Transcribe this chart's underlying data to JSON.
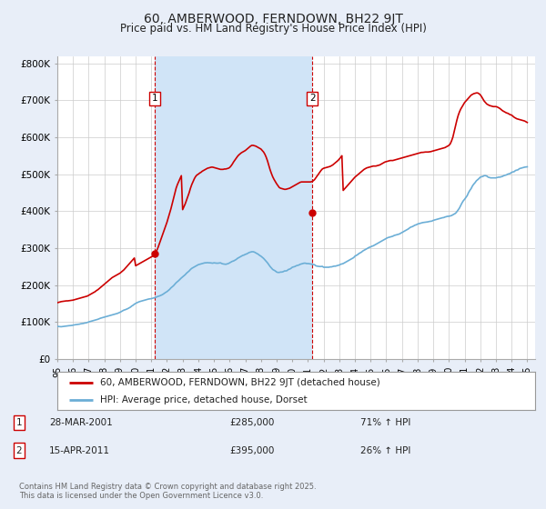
{
  "title": "60, AMBERWOOD, FERNDOWN, BH22 9JT",
  "subtitle": "Price paid vs. HM Land Registry's House Price Index (HPI)",
  "title_fontsize": 10,
  "subtitle_fontsize": 8.5,
  "ylabel_ticks": [
    "£0",
    "£100K",
    "£200K",
    "£300K",
    "£400K",
    "£500K",
    "£600K",
    "£700K",
    "£800K"
  ],
  "ytick_values": [
    0,
    100000,
    200000,
    300000,
    400000,
    500000,
    600000,
    700000,
    800000
  ],
  "ylim": [
    0,
    820000
  ],
  "xlim_start": 1995.0,
  "xlim_end": 2025.5,
  "fig_bg_color": "#e8eef8",
  "plot_bg_color": "#ffffff",
  "grid_color": "#cccccc",
  "shade_color": "#d0e4f7",
  "red_line_color": "#cc0000",
  "blue_line_color": "#6baed6",
  "vline_color": "#cc0000",
  "sale1_x": 2001.24,
  "sale1_y": 285000,
  "sale1_label": "1",
  "sale2_x": 2011.29,
  "sale2_y": 395000,
  "sale2_label": "2",
  "legend_red_label": "60, AMBERWOOD, FERNDOWN, BH22 9JT (detached house)",
  "legend_blue_label": "HPI: Average price, detached house, Dorset",
  "copyright_text": "Contains HM Land Registry data © Crown copyright and database right 2025.\nThis data is licensed under the Open Government Licence v3.0.",
  "hpi_years": [
    1995.0,
    1995.083,
    1995.167,
    1995.25,
    1995.333,
    1995.417,
    1995.5,
    1995.583,
    1995.667,
    1995.75,
    1995.833,
    1995.917,
    1996.0,
    1996.083,
    1996.167,
    1996.25,
    1996.333,
    1996.417,
    1996.5,
    1996.583,
    1996.667,
    1996.75,
    1996.833,
    1996.917,
    1997.0,
    1997.083,
    1997.167,
    1997.25,
    1997.333,
    1997.417,
    1997.5,
    1997.583,
    1997.667,
    1997.75,
    1997.833,
    1997.917,
    1998.0,
    1998.083,
    1998.167,
    1998.25,
    1998.333,
    1998.417,
    1998.5,
    1998.583,
    1998.667,
    1998.75,
    1998.833,
    1998.917,
    1999.0,
    1999.083,
    1999.167,
    1999.25,
    1999.333,
    1999.417,
    1999.5,
    1999.583,
    1999.667,
    1999.75,
    1999.833,
    1999.917,
    2000.0,
    2000.083,
    2000.167,
    2000.25,
    2000.333,
    2000.417,
    2000.5,
    2000.583,
    2000.667,
    2000.75,
    2000.833,
    2000.917,
    2001.0,
    2001.083,
    2001.167,
    2001.25,
    2001.333,
    2001.417,
    2001.5,
    2001.583,
    2001.667,
    2001.75,
    2001.833,
    2001.917,
    2002.0,
    2002.083,
    2002.167,
    2002.25,
    2002.333,
    2002.417,
    2002.5,
    2002.583,
    2002.667,
    2002.75,
    2002.833,
    2002.917,
    2003.0,
    2003.083,
    2003.167,
    2003.25,
    2003.333,
    2003.417,
    2003.5,
    2003.583,
    2003.667,
    2003.75,
    2003.833,
    2003.917,
    2004.0,
    2004.083,
    2004.167,
    2004.25,
    2004.333,
    2004.417,
    2004.5,
    2004.583,
    2004.667,
    2004.75,
    2004.833,
    2004.917,
    2005.0,
    2005.083,
    2005.167,
    2005.25,
    2005.333,
    2005.417,
    2005.5,
    2005.583,
    2005.667,
    2005.75,
    2005.833,
    2005.917,
    2006.0,
    2006.083,
    2006.167,
    2006.25,
    2006.333,
    2006.417,
    2006.5,
    2006.583,
    2006.667,
    2006.75,
    2006.833,
    2006.917,
    2007.0,
    2007.083,
    2007.167,
    2007.25,
    2007.333,
    2007.417,
    2007.5,
    2007.583,
    2007.667,
    2007.75,
    2007.833,
    2007.917,
    2008.0,
    2008.083,
    2008.167,
    2008.25,
    2008.333,
    2008.417,
    2008.5,
    2008.583,
    2008.667,
    2008.75,
    2008.833,
    2008.917,
    2009.0,
    2009.083,
    2009.167,
    2009.25,
    2009.333,
    2009.417,
    2009.5,
    2009.583,
    2009.667,
    2009.75,
    2009.833,
    2009.917,
    2010.0,
    2010.083,
    2010.167,
    2010.25,
    2010.333,
    2010.417,
    2010.5,
    2010.583,
    2010.667,
    2010.75,
    2010.833,
    2010.917,
    2011.0,
    2011.083,
    2011.167,
    2011.25,
    2011.333,
    2011.417,
    2011.5,
    2011.583,
    2011.667,
    2011.75,
    2011.833,
    2011.917,
    2012.0,
    2012.083,
    2012.167,
    2012.25,
    2012.333,
    2012.417,
    2012.5,
    2012.583,
    2012.667,
    2012.75,
    2012.833,
    2012.917,
    2013.0,
    2013.083,
    2013.167,
    2013.25,
    2013.333,
    2013.417,
    2013.5,
    2013.583,
    2013.667,
    2013.75,
    2013.833,
    2013.917,
    2014.0,
    2014.083,
    2014.167,
    2014.25,
    2014.333,
    2014.417,
    2014.5,
    2014.583,
    2014.667,
    2014.75,
    2014.833,
    2014.917,
    2015.0,
    2015.083,
    2015.167,
    2015.25,
    2015.333,
    2015.417,
    2015.5,
    2015.583,
    2015.667,
    2015.75,
    2015.833,
    2015.917,
    2016.0,
    2016.083,
    2016.167,
    2016.25,
    2016.333,
    2016.417,
    2016.5,
    2016.583,
    2016.667,
    2016.75,
    2016.833,
    2016.917,
    2017.0,
    2017.083,
    2017.167,
    2017.25,
    2017.333,
    2017.417,
    2017.5,
    2017.583,
    2017.667,
    2017.75,
    2017.833,
    2017.917,
    2018.0,
    2018.083,
    2018.167,
    2018.25,
    2018.333,
    2018.417,
    2018.5,
    2018.583,
    2018.667,
    2018.75,
    2018.833,
    2018.917,
    2019.0,
    2019.083,
    2019.167,
    2019.25,
    2019.333,
    2019.417,
    2019.5,
    2019.583,
    2019.667,
    2019.75,
    2019.833,
    2019.917,
    2020.0,
    2020.083,
    2020.167,
    2020.25,
    2020.333,
    2020.417,
    2020.5,
    2020.583,
    2020.667,
    2020.75,
    2020.833,
    2020.917,
    2021.0,
    2021.083,
    2021.167,
    2021.25,
    2021.333,
    2021.417,
    2021.5,
    2021.583,
    2021.667,
    2021.75,
    2021.833,
    2021.917,
    2022.0,
    2022.083,
    2022.167,
    2022.25,
    2022.333,
    2022.417,
    2022.5,
    2022.583,
    2022.667,
    2022.75,
    2022.833,
    2022.917,
    2023.0,
    2023.083,
    2023.167,
    2023.25,
    2023.333,
    2023.417,
    2023.5,
    2023.583,
    2023.667,
    2023.75,
    2023.833,
    2023.917,
    2024.0,
    2024.083,
    2024.167,
    2024.25,
    2024.333,
    2024.417,
    2024.5,
    2024.583,
    2024.667,
    2024.75,
    2024.833,
    2024.917,
    2025.0
  ],
  "hpi_values": [
    88000,
    87500,
    87200,
    87000,
    87500,
    88000,
    88500,
    89000,
    89500,
    89800,
    90000,
    90500,
    91000,
    92000,
    92500,
    93000,
    93500,
    94000,
    95000,
    95500,
    96000,
    97000,
    97500,
    98500,
    100000,
    101000,
    102000,
    103000,
    104000,
    105000,
    106000,
    107000,
    108500,
    110000,
    111000,
    112000,
    113000,
    114000,
    115000,
    116000,
    117000,
    118000,
    119000,
    120000,
    121000,
    122000,
    123000,
    124500,
    126000,
    128000,
    130000,
    132000,
    133000,
    134500,
    136000,
    138000,
    140000,
    143000,
    145000,
    148000,
    150000,
    152000,
    153500,
    155000,
    156000,
    157000,
    158000,
    159000,
    160000,
    161000,
    162000,
    162500,
    163000,
    164000,
    165000,
    166000,
    167500,
    169000,
    170000,
    171500,
    173000,
    175000,
    177500,
    180000,
    182000,
    185000,
    188000,
    192000,
    195000,
    198000,
    202000,
    206000,
    209000,
    212000,
    215500,
    219000,
    222000,
    225000,
    228000,
    232000,
    235000,
    238000,
    242000,
    245000,
    247000,
    249000,
    251000,
    253000,
    255000,
    256000,
    257000,
    258000,
    259000,
    260000,
    260000,
    260500,
    260000,
    260000,
    259500,
    259000,
    260000,
    259500,
    259000,
    259000,
    259500,
    260000,
    258000,
    257000,
    256500,
    256000,
    257000,
    258000,
    260000,
    262000,
    264000,
    265000,
    267000,
    269000,
    272000,
    274000,
    276000,
    278000,
    280000,
    281000,
    283000,
    284000,
    286000,
    288000,
    289000,
    290000,
    290000,
    289000,
    287000,
    285000,
    283000,
    280000,
    278000,
    275000,
    272000,
    268000,
    264000,
    260000,
    255000,
    250000,
    246000,
    242000,
    240000,
    238000,
    235000,
    234000,
    234000,
    235000,
    235000,
    236000,
    238000,
    238000,
    239000,
    242000,
    243000,
    245000,
    248000,
    249000,
    250000,
    252000,
    253000,
    254000,
    256000,
    257000,
    258000,
    259000,
    259000,
    258000,
    258000,
    257500,
    257000,
    256000,
    255500,
    255000,
    252000,
    251000,
    250500,
    250000,
    250000,
    250500,
    248000,
    248000,
    248000,
    248000,
    248000,
    249000,
    249000,
    250000,
    251000,
    251000,
    252000,
    253000,
    254000,
    256000,
    257000,
    258000,
    260000,
    262000,
    264000,
    266000,
    268000,
    270000,
    272000,
    274000,
    278000,
    280000,
    282000,
    285000,
    287000,
    289000,
    292000,
    294000,
    296000,
    298000,
    300000,
    302000,
    303000,
    305000,
    306000,
    308000,
    310000,
    312000,
    314000,
    316000,
    318000,
    320000,
    322000,
    324000,
    326000,
    328000,
    329000,
    330000,
    331000,
    332000,
    334000,
    335000,
    336000,
    337000,
    338000,
    340000,
    342000,
    344000,
    346000,
    348000,
    350000,
    352000,
    355000,
    357000,
    358000,
    360000,
    362000,
    363000,
    365000,
    366000,
    367000,
    368000,
    369000,
    369500,
    370000,
    370500,
    371000,
    372000,
    372500,
    373000,
    375000,
    376000,
    377000,
    378000,
    379000,
    380000,
    381000,
    382000,
    382500,
    384000,
    385000,
    386000,
    386000,
    387000,
    388000,
    390000,
    392000,
    394000,
    398000,
    403000,
    408000,
    415000,
    422000,
    428000,
    432000,
    437000,
    442000,
    450000,
    456000,
    461000,
    468000,
    473000,
    477000,
    482000,
    485000,
    488000,
    492000,
    493000,
    494000,
    496000,
    496000,
    495000,
    492000,
    491000,
    490000,
    490000,
    490000,
    490000,
    490000,
    491000,
    492000,
    492000,
    493000,
    494000,
    496000,
    497000,
    498000,
    500000,
    501000,
    502000,
    505000,
    506000,
    507000,
    510000,
    511000,
    512000,
    515000,
    516000,
    517000,
    518000,
    519000,
    519500,
    520000
  ],
  "red_years": [
    1995.0,
    1995.083,
    1995.167,
    1995.25,
    1995.333,
    1995.417,
    1995.5,
    1995.583,
    1995.667,
    1995.75,
    1995.833,
    1995.917,
    1996.0,
    1996.083,
    1996.167,
    1996.25,
    1996.333,
    1996.417,
    1996.5,
    1996.583,
    1996.667,
    1996.75,
    1996.833,
    1996.917,
    1997.0,
    1997.083,
    1997.167,
    1997.25,
    1997.333,
    1997.417,
    1997.5,
    1997.583,
    1997.667,
    1997.75,
    1997.833,
    1997.917,
    1998.0,
    1998.083,
    1998.167,
    1998.25,
    1998.333,
    1998.417,
    1998.5,
    1998.583,
    1998.667,
    1998.75,
    1998.833,
    1998.917,
    1999.0,
    1999.083,
    1999.167,
    1999.25,
    1999.333,
    1999.417,
    1999.5,
    1999.583,
    1999.667,
    1999.75,
    1999.833,
    1999.917,
    2000.0,
    2000.083,
    2000.167,
    2000.25,
    2000.333,
    2000.417,
    2000.5,
    2000.583,
    2000.667,
    2000.75,
    2000.833,
    2000.917,
    2001.0,
    2001.083,
    2001.167,
    2001.25,
    2001.333,
    2001.417,
    2001.5,
    2001.583,
    2001.667,
    2001.75,
    2001.833,
    2001.917,
    2002.0,
    2002.083,
    2002.167,
    2002.25,
    2002.333,
    2002.417,
    2002.5,
    2002.583,
    2002.667,
    2002.75,
    2002.833,
    2002.917,
    2003.0,
    2003.083,
    2003.167,
    2003.25,
    2003.333,
    2003.417,
    2003.5,
    2003.583,
    2003.667,
    2003.75,
    2003.833,
    2003.917,
    2004.0,
    2004.083,
    2004.167,
    2004.25,
    2004.333,
    2004.417,
    2004.5,
    2004.583,
    2004.667,
    2004.75,
    2004.833,
    2004.917,
    2005.0,
    2005.083,
    2005.167,
    2005.25,
    2005.333,
    2005.417,
    2005.5,
    2005.583,
    2005.667,
    2005.75,
    2005.833,
    2005.917,
    2006.0,
    2006.083,
    2006.167,
    2006.25,
    2006.333,
    2006.417,
    2006.5,
    2006.583,
    2006.667,
    2006.75,
    2006.833,
    2006.917,
    2007.0,
    2007.083,
    2007.167,
    2007.25,
    2007.333,
    2007.417,
    2007.5,
    2007.583,
    2007.667,
    2007.75,
    2007.833,
    2007.917,
    2008.0,
    2008.083,
    2008.167,
    2008.25,
    2008.333,
    2008.417,
    2008.5,
    2008.583,
    2008.667,
    2008.75,
    2008.833,
    2008.917,
    2009.0,
    2009.083,
    2009.167,
    2009.25,
    2009.333,
    2009.417,
    2009.5,
    2009.583,
    2009.667,
    2009.75,
    2009.833,
    2009.917,
    2010.0,
    2010.083,
    2010.167,
    2010.25,
    2010.333,
    2010.417,
    2010.5,
    2010.583,
    2010.667,
    2010.75,
    2010.833,
    2010.917,
    2011.0,
    2011.083,
    2011.167,
    2011.25,
    2011.333,
    2011.417,
    2011.5,
    2011.583,
    2011.667,
    2011.75,
    2011.833,
    2011.917,
    2012.0,
    2012.083,
    2012.167,
    2012.25,
    2012.333,
    2012.417,
    2012.5,
    2012.583,
    2012.667,
    2012.75,
    2012.833,
    2012.917,
    2013.0,
    2013.083,
    2013.167,
    2013.25,
    2013.333,
    2013.417,
    2013.5,
    2013.583,
    2013.667,
    2013.75,
    2013.833,
    2013.917,
    2014.0,
    2014.083,
    2014.167,
    2014.25,
    2014.333,
    2014.417,
    2014.5,
    2014.583,
    2014.667,
    2014.75,
    2014.833,
    2014.917,
    2015.0,
    2015.083,
    2015.167,
    2015.25,
    2015.333,
    2015.417,
    2015.5,
    2015.583,
    2015.667,
    2015.75,
    2015.833,
    2015.917,
    2016.0,
    2016.083,
    2016.167,
    2016.25,
    2016.333,
    2016.417,
    2016.5,
    2016.583,
    2016.667,
    2016.75,
    2016.833,
    2016.917,
    2017.0,
    2017.083,
    2017.167,
    2017.25,
    2017.333,
    2017.417,
    2017.5,
    2017.583,
    2017.667,
    2017.75,
    2017.833,
    2017.917,
    2018.0,
    2018.083,
    2018.167,
    2018.25,
    2018.333,
    2018.417,
    2018.5,
    2018.583,
    2018.667,
    2018.75,
    2018.833,
    2018.917,
    2019.0,
    2019.083,
    2019.167,
    2019.25,
    2019.333,
    2019.417,
    2019.5,
    2019.583,
    2019.667,
    2019.75,
    2019.833,
    2019.917,
    2020.0,
    2020.083,
    2020.167,
    2020.25,
    2020.333,
    2020.417,
    2020.5,
    2020.583,
    2020.667,
    2020.75,
    2020.833,
    2020.917,
    2021.0,
    2021.083,
    2021.167,
    2021.25,
    2021.333,
    2021.417,
    2021.5,
    2021.583,
    2021.667,
    2021.75,
    2021.833,
    2021.917,
    2022.0,
    2022.083,
    2022.167,
    2022.25,
    2022.333,
    2022.417,
    2022.5,
    2022.583,
    2022.667,
    2022.75,
    2022.833,
    2022.917,
    2023.0,
    2023.083,
    2023.167,
    2023.25,
    2023.333,
    2023.417,
    2023.5,
    2023.583,
    2023.667,
    2023.75,
    2023.833,
    2023.917,
    2024.0,
    2024.083,
    2024.167,
    2024.25,
    2024.333,
    2024.417,
    2024.5,
    2024.583,
    2024.667,
    2024.75,
    2024.833,
    2024.917,
    2025.0
  ],
  "red_values": [
    152000,
    153000,
    154000,
    155000,
    155500,
    156000,
    156500,
    157000,
    157000,
    157500,
    158000,
    158500,
    159000,
    160000,
    161000,
    162000,
    163000,
    164000,
    165000,
    166000,
    167000,
    168000,
    169000,
    170000,
    172000,
    174000,
    176000,
    178000,
    180000,
    182000,
    185000,
    187000,
    190000,
    193000,
    196000,
    199000,
    202000,
    205000,
    208000,
    211000,
    214000,
    217000,
    220000,
    222000,
    224000,
    226000,
    228000,
    230000,
    232000,
    235000,
    238000,
    241000,
    245000,
    249000,
    253000,
    257000,
    261000,
    265000,
    269000,
    273000,
    252000,
    254000,
    256000,
    258000,
    260000,
    262000,
    264000,
    266000,
    268000,
    270000,
    272000,
    274000,
    276000,
    278000,
    280000,
    285000,
    292000,
    300000,
    310000,
    320000,
    330000,
    340000,
    350000,
    360000,
    370000,
    382000,
    394000,
    406000,
    420000,
    434000,
    448000,
    462000,
    472000,
    480000,
    488000,
    496000,
    404000,
    412000,
    420000,
    430000,
    440000,
    450000,
    462000,
    472000,
    480000,
    488000,
    494000,
    498000,
    500000,
    503000,
    505000,
    508000,
    510000,
    512000,
    514000,
    516000,
    517000,
    518000,
    519000,
    519000,
    518000,
    517000,
    516000,
    515000,
    514000,
    513000,
    513000,
    513000,
    514000,
    514000,
    515000,
    516000,
    518000,
    522000,
    527000,
    533000,
    538000,
    543000,
    548000,
    552000,
    555000,
    558000,
    560000,
    562000,
    564000,
    567000,
    570000,
    573000,
    576000,
    578000,
    578000,
    577000,
    576000,
    574000,
    572000,
    570000,
    568000,
    564000,
    560000,
    554000,
    546000,
    536000,
    524000,
    512000,
    502000,
    493000,
    486000,
    480000,
    474000,
    469000,
    464000,
    462000,
    461000,
    460000,
    459000,
    459000,
    460000,
    461000,
    462000,
    464000,
    466000,
    468000,
    470000,
    472000,
    474000,
    476000,
    478000,
    479000,
    479000,
    479000,
    479000,
    479000,
    479000,
    479000,
    479000,
    480000,
    482000,
    485000,
    490000,
    495000,
    500000,
    505000,
    510000,
    514000,
    516000,
    517000,
    518000,
    519000,
    520000,
    521000,
    523000,
    525000,
    528000,
    531000,
    534000,
    537000,
    541000,
    545000,
    550000,
    456000,
    460000,
    464000,
    468000,
    472000,
    476000,
    480000,
    484000,
    488000,
    492000,
    495000,
    498000,
    501000,
    504000,
    507000,
    510000,
    513000,
    515000,
    517000,
    518000,
    519000,
    520000,
    521000,
    522000,
    522000,
    522000,
    523000,
    524000,
    525000,
    527000,
    529000,
    531000,
    533000,
    534000,
    535000,
    536000,
    537000,
    537000,
    537000,
    538000,
    539000,
    540000,
    541000,
    542000,
    543000,
    544000,
    545000,
    546000,
    547000,
    548000,
    549000,
    550000,
    551000,
    552000,
    553000,
    554000,
    555000,
    556000,
    557000,
    558000,
    559000,
    559000,
    559500,
    560000,
    560000,
    560000,
    560500,
    561000,
    562000,
    563000,
    564000,
    565000,
    566000,
    567000,
    568000,
    569000,
    570000,
    571000,
    572000,
    574000,
    576000,
    578000,
    582000,
    590000,
    600000,
    615000,
    630000,
    645000,
    658000,
    668000,
    676000,
    682000,
    688000,
    694000,
    698000,
    702000,
    706000,
    710000,
    714000,
    716000,
    718000,
    719000,
    720000,
    720000,
    718000,
    715000,
    710000,
    704000,
    698000,
    694000,
    690000,
    688000,
    686000,
    685000,
    684000,
    683000,
    683000,
    683000,
    682000,
    680000,
    678000,
    675000,
    672000,
    670000,
    668000,
    666000,
    665000,
    663000,
    661000,
    660000,
    657000,
    654000,
    652000,
    650000,
    649000,
    648000,
    647000,
    646000,
    645000,
    644000,
    642000,
    640000
  ]
}
